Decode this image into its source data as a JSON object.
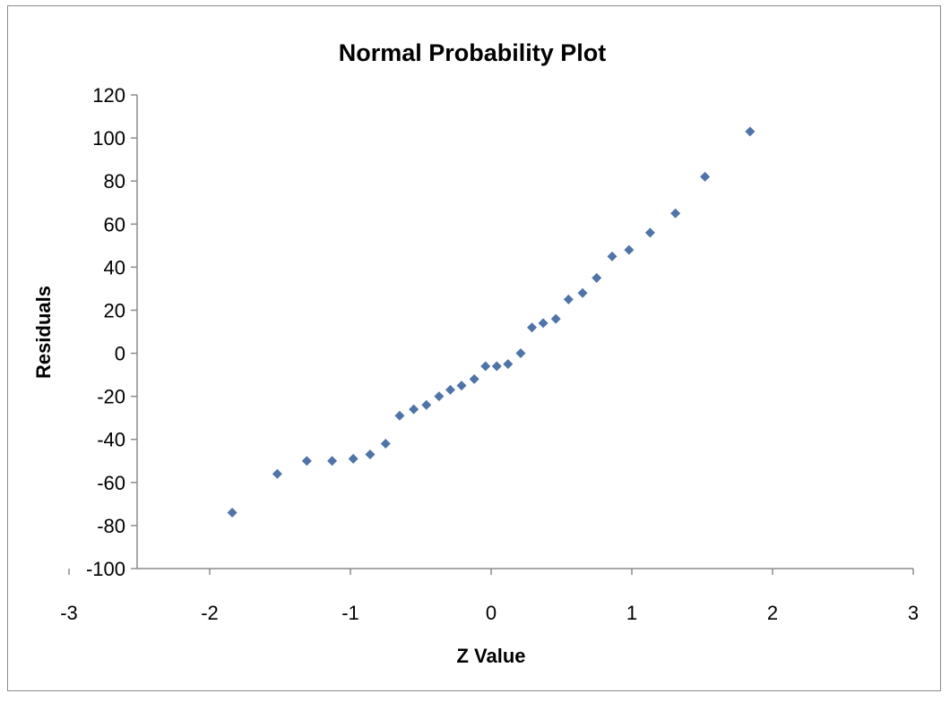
{
  "chart_data": {
    "type": "scatter",
    "title": "Normal Probability Plot",
    "xlabel": "Z Value",
    "ylabel": "Residuals",
    "xlim": [
      -3,
      3
    ],
    "ylim": [
      -100,
      120
    ],
    "x_ticks": [
      -3,
      -2,
      -1,
      0,
      1,
      2,
      3
    ],
    "y_ticks": [
      -100,
      -80,
      -60,
      -40,
      -20,
      0,
      20,
      40,
      60,
      80,
      100,
      120
    ],
    "grid": false,
    "legend": "none",
    "marker": "diamond",
    "series": [
      {
        "color": "#4f74a8",
        "points": [
          {
            "x": -1.84,
            "y": -74
          },
          {
            "x": -1.52,
            "y": -56
          },
          {
            "x": -1.31,
            "y": -50
          },
          {
            "x": -1.13,
            "y": -50
          },
          {
            "x": -0.98,
            "y": -49
          },
          {
            "x": -0.86,
            "y": -47
          },
          {
            "x": -0.75,
            "y": -42
          },
          {
            "x": -0.65,
            "y": -29
          },
          {
            "x": -0.55,
            "y": -26
          },
          {
            "x": -0.46,
            "y": -24
          },
          {
            "x": -0.37,
            "y": -20
          },
          {
            "x": -0.29,
            "y": -17
          },
          {
            "x": -0.21,
            "y": -15
          },
          {
            "x": -0.12,
            "y": -12
          },
          {
            "x": -0.04,
            "y": -6
          },
          {
            "x": 0.04,
            "y": -6
          },
          {
            "x": 0.12,
            "y": -5
          },
          {
            "x": 0.21,
            "y": 0
          },
          {
            "x": 0.29,
            "y": 12
          },
          {
            "x": 0.37,
            "y": 14
          },
          {
            "x": 0.46,
            "y": 16
          },
          {
            "x": 0.55,
            "y": 25
          },
          {
            "x": 0.65,
            "y": 28
          },
          {
            "x": 0.75,
            "y": 35
          },
          {
            "x": 0.86,
            "y": 45
          },
          {
            "x": 0.98,
            "y": 48
          },
          {
            "x": 1.13,
            "y": 56
          },
          {
            "x": 1.31,
            "y": 65
          },
          {
            "x": 1.52,
            "y": 82
          },
          {
            "x": 1.84,
            "y": 103
          }
        ]
      }
    ]
  }
}
